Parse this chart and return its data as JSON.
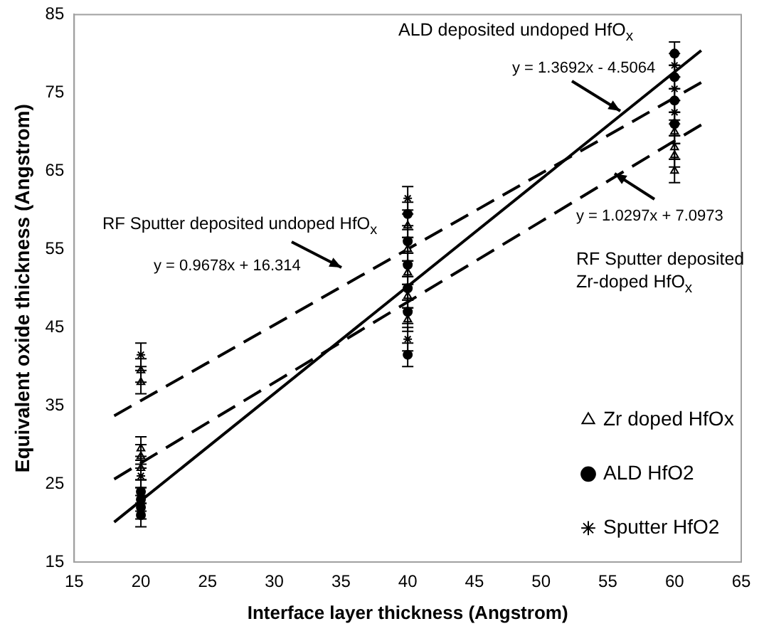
{
  "chart_data": {
    "type": "scatter",
    "xlabel": "Interface layer thickness (Angstrom)",
    "ylabel": "Equivalent oxide thickness (Angstrom)",
    "xlim": [
      15,
      65
    ],
    "xticks": [
      15,
      20,
      25,
      30,
      35,
      40,
      45,
      50,
      55,
      60,
      65
    ],
    "ylim": [
      15,
      85
    ],
    "yticks": [
      15,
      25,
      35,
      45,
      55,
      65,
      75,
      85
    ],
    "grid": false,
    "legend": "right",
    "series": [
      {
        "name": "Zr doped HfOx",
        "type": "scatter",
        "marker": "triangle",
        "color": "#000000",
        "x": [
          20,
          20,
          20,
          20,
          20,
          40,
          40,
          40,
          40,
          40,
          60,
          60,
          60,
          60
        ],
        "values": [
          38,
          39.5,
          27,
          28.5,
          29.5,
          46,
          49,
          52,
          55,
          58,
          65,
          67,
          68,
          70
        ],
        "errors": [
          1.5,
          1.5,
          1.5,
          1.5,
          1.5,
          1.5,
          1.5,
          1.5,
          1.5,
          1.5,
          1.5,
          1.5,
          1.5,
          1.5
        ]
      },
      {
        "name": "ALD HfO2",
        "type": "scatter",
        "marker": "circle",
        "color": "#000000",
        "x": [
          20,
          20,
          20,
          20,
          40,
          40,
          40,
          40,
          40,
          40,
          60,
          60,
          60,
          60
        ],
        "values": [
          21,
          22,
          23,
          24,
          41.5,
          47,
          50,
          53,
          56,
          59.5,
          71,
          74,
          77,
          80
        ],
        "errors": [
          1.5,
          1.5,
          1.5,
          1.5,
          1.5,
          1.5,
          1.5,
          1.5,
          1.5,
          1.5,
          1.5,
          1.5,
          1.5,
          1.5
        ]
      },
      {
        "name": "Sputter HfO2",
        "type": "scatter",
        "marker": "cross",
        "color": "#000000",
        "x": [
          20,
          20,
          40,
          40,
          60,
          60,
          60
        ],
        "values": [
          41.5,
          26,
          43.5,
          61.5,
          72.5,
          75.5,
          78.5
        ],
        "errors": [
          1.5,
          1.5,
          1.5,
          1.5,
          1.5,
          1.5,
          1.5
        ]
      },
      {
        "type": "line",
        "marker": "none",
        "line_style": "dashed",
        "color": "#000000",
        "x": [
          18,
          62
        ],
        "values": [
          33.7,
          76.3
        ]
      },
      {
        "type": "line",
        "marker": "none",
        "line_style": "solid",
        "color": "#000000",
        "x": [
          18,
          62
        ],
        "values": [
          20.1,
          80.4
        ]
      },
      {
        "type": "line",
        "marker": "none",
        "line_style": "dashed",
        "color": "#000000",
        "x": [
          18,
          62
        ],
        "values": [
          25.6,
          70.9
        ]
      }
    ],
    "annotations": [
      "ALD deposited undoped HfO$_{x}$",
      "y = 1.3692x - 4.5064",
      "RF Sputter deposited undoped HfO$_{x}$",
      "y = 0.9678x + 16.314",
      "y = 1.0297x + 7.0973",
      "RF Sputter deposited Zr-doped HfO$_{x}$"
    ]
  }
}
